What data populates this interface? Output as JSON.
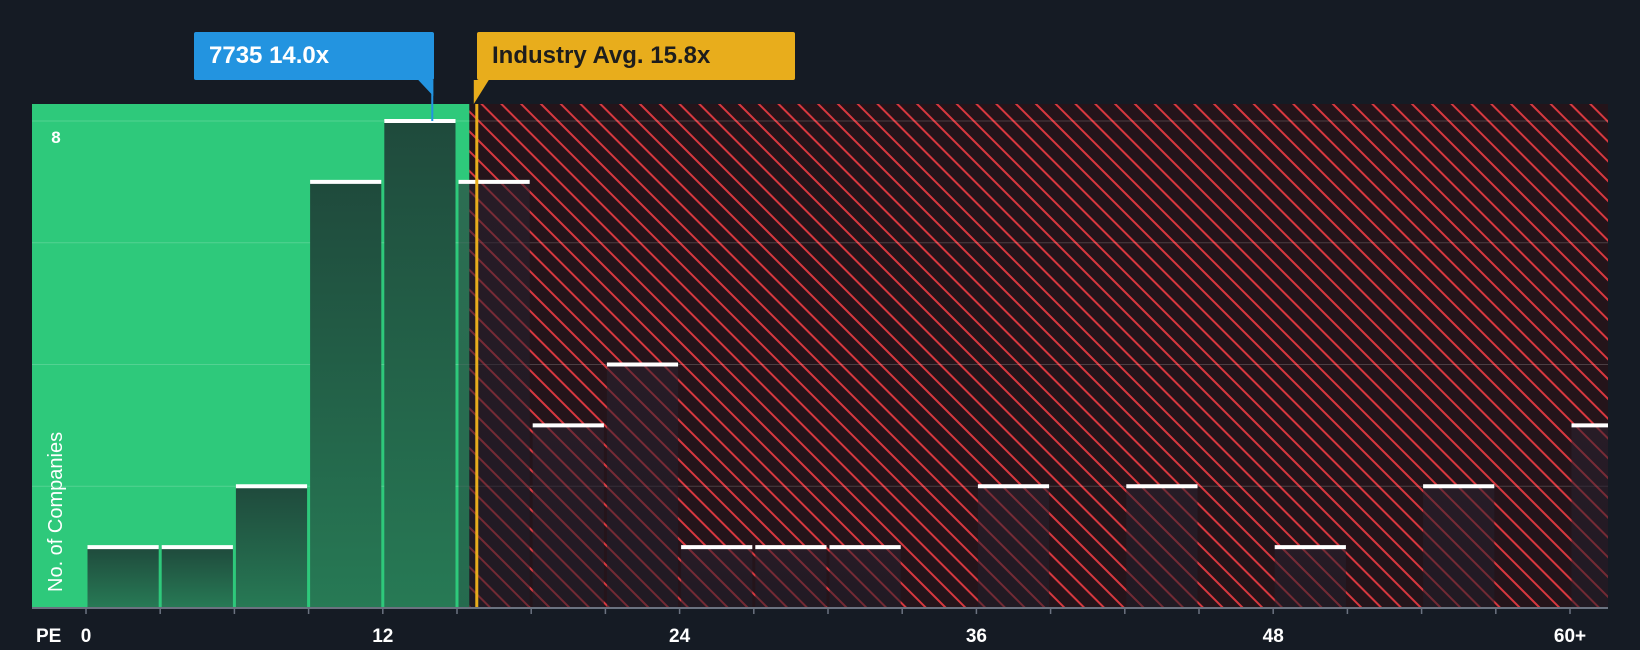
{
  "chart_data": {
    "type": "bar",
    "xlabel": "PE",
    "ylabel": "No. of Companies",
    "bin_width": 3,
    "x_range": [
      0,
      61.5
    ],
    "ylim": [
      0,
      8.3
    ],
    "x_ticks": [
      {
        "value": 0,
        "label": "0"
      },
      {
        "value": 12,
        "label": "12"
      },
      {
        "value": 24,
        "label": "24"
      },
      {
        "value": 36,
        "label": "36"
      },
      {
        "value": 48,
        "label": "48"
      },
      {
        "value": 60,
        "label": "60+"
      }
    ],
    "y_ticks": [
      {
        "value": 8,
        "label": "8"
      }
    ],
    "gridlines": [
      2,
      4,
      6,
      8
    ],
    "bins": [
      {
        "x": 0,
        "count": 1
      },
      {
        "x": 3,
        "count": 1
      },
      {
        "x": 6,
        "count": 2
      },
      {
        "x": 9,
        "count": 7
      },
      {
        "x": 12,
        "count": 8
      },
      {
        "x": 15,
        "count": 7
      },
      {
        "x": 18,
        "count": 3
      },
      {
        "x": 21,
        "count": 4
      },
      {
        "x": 24,
        "count": 1
      },
      {
        "x": 27,
        "count": 1
      },
      {
        "x": 30,
        "count": 1
      },
      {
        "x": 33,
        "count": 0
      },
      {
        "x": 36,
        "count": 2
      },
      {
        "x": 39,
        "count": 0
      },
      {
        "x": 42,
        "count": 2
      },
      {
        "x": 45,
        "count": 0
      },
      {
        "x": 48,
        "count": 1
      },
      {
        "x": 51,
        "count": 0
      },
      {
        "x": 54,
        "count": 2
      },
      {
        "x": 57,
        "count": 0
      },
      {
        "x": 60,
        "count": 3
      }
    ],
    "company": {
      "ticker": "7735",
      "pe": 14.0,
      "label": "14.0x"
    },
    "industry_avg": {
      "pe": 15.8,
      "label": "Industry Avg. 15.8x"
    },
    "colors": {
      "background": "#151b24",
      "undervalued_zone": "#2ec97b",
      "overvalued_zone": "#24141a",
      "hatch": "#d7383f",
      "company_bar": "#2394e0",
      "industry_line": "#e8ad1c",
      "bar_cap": "#ffffff",
      "axis_text": "#ffffff"
    }
  }
}
